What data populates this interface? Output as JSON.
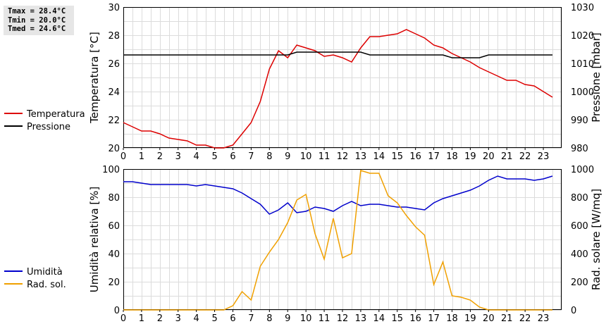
{
  "stats": {
    "tmax": "Tmax = 28.4°C",
    "tmin": "Tmin = 20.0°C",
    "tmed": "Tmed = 24.6°C"
  },
  "chart_data": [
    {
      "type": "line",
      "xlabel": "",
      "x_ticks": [
        "0",
        "1",
        "2",
        "3",
        "4",
        "5",
        "6",
        "7",
        "8",
        "9",
        "10",
        "11",
        "12",
        "13",
        "14",
        "15",
        "16",
        "17",
        "18",
        "19",
        "20",
        "21",
        "22",
        "23"
      ],
      "xlim": [
        0,
        24
      ],
      "ylabel": "Temperatura [°C]",
      "ylim": [
        20,
        30
      ],
      "y_ticks": [
        "20",
        "22",
        "24",
        "26",
        "28",
        "30"
      ],
      "y2label": "Pressione [mbar]",
      "y2lim": [
        980,
        1030
      ],
      "y2_ticks": [
        "980",
        "990",
        "1000",
        "1010",
        "1020",
        "1030"
      ],
      "grid": true,
      "legend_position": "left",
      "series": [
        {
          "name": "Temperatura",
          "axis": "left",
          "color": "#dd0000",
          "x": [
            0,
            0.5,
            1,
            1.5,
            2,
            2.5,
            3,
            3.5,
            4,
            4.5,
            5,
            5.5,
            6,
            6.5,
            7,
            7.5,
            8,
            8.5,
            9,
            9.5,
            10,
            10.5,
            11,
            11.5,
            12,
            12.5,
            13,
            13.5,
            14,
            14.5,
            15,
            15.5,
            16,
            16.5,
            17,
            17.5,
            18,
            18.5,
            19,
            19.5,
            20,
            20.5,
            21,
            21.5,
            22,
            22.5,
            23,
            23.5
          ],
          "values": [
            21.8,
            21.5,
            21.2,
            21.2,
            21.0,
            20.7,
            20.6,
            20.5,
            20.2,
            20.2,
            20.0,
            20.0,
            20.2,
            21.0,
            21.8,
            23.3,
            25.6,
            26.9,
            26.4,
            27.3,
            27.1,
            26.9,
            26.5,
            26.6,
            26.4,
            26.1,
            27.1,
            27.9,
            27.9,
            28.0,
            28.1,
            28.4,
            28.1,
            27.8,
            27.3,
            27.1,
            26.7,
            26.4,
            26.1,
            25.7,
            25.4,
            25.1,
            24.8,
            24.8,
            24.5,
            24.4,
            24.0,
            23.6
          ]
        },
        {
          "name": "Pressione",
          "axis": "right",
          "color": "#000000",
          "x": [
            0,
            9,
            9.5,
            13,
            13.5,
            17.5,
            18,
            19.5,
            20,
            23.5
          ],
          "values": [
            1013,
            1013,
            1014,
            1014,
            1013,
            1013,
            1012,
            1012,
            1013,
            1013
          ]
        }
      ]
    },
    {
      "type": "line",
      "xlabel": "",
      "x_ticks": [
        "0",
        "1",
        "2",
        "3",
        "4",
        "5",
        "6",
        "7",
        "8",
        "9",
        "10",
        "11",
        "12",
        "13",
        "14",
        "15",
        "16",
        "17",
        "18",
        "19",
        "20",
        "21",
        "22",
        "23"
      ],
      "xlim": [
        0,
        24
      ],
      "ylabel": "Umidità relativa [%]",
      "ylim": [
        0,
        100
      ],
      "y_ticks": [
        "0",
        "20",
        "40",
        "60",
        "80",
        "100"
      ],
      "y2label": "Rad. solare [W/mq]",
      "y2lim": [
        0,
        1000
      ],
      "y2_ticks": [
        "0",
        "200",
        "400",
        "600",
        "800",
        "1000"
      ],
      "grid": true,
      "legend_position": "left",
      "series": [
        {
          "name": "Umidità",
          "axis": "left",
          "color": "#0000cc",
          "x": [
            0,
            0.5,
            1,
            1.5,
            2,
            2.5,
            3,
            3.5,
            4,
            4.5,
            5,
            5.5,
            6,
            6.5,
            7,
            7.5,
            8,
            8.5,
            9,
            9.5,
            10,
            10.5,
            11,
            11.5,
            12,
            12.5,
            13,
            13.5,
            14,
            14.5,
            15,
            15.5,
            16,
            16.5,
            17,
            17.5,
            18,
            18.5,
            19,
            19.5,
            20,
            20.5,
            21,
            21.5,
            22,
            22.5,
            23,
            23.5
          ],
          "values": [
            91,
            91,
            90,
            89,
            89,
            89,
            89,
            89,
            88,
            89,
            88,
            87,
            86,
            83,
            79,
            75,
            68,
            71,
            76,
            69,
            70,
            73,
            72,
            70,
            74,
            77,
            74,
            75,
            75,
            74,
            73,
            73,
            72,
            71,
            76,
            79,
            81,
            83,
            85,
            88,
            92,
            95,
            93,
            93,
            93,
            92,
            93,
            95
          ]
        },
        {
          "name": "Rad. sol.",
          "axis": "right",
          "color": "#f0a000",
          "x": [
            0,
            0.5,
            1,
            1.5,
            2,
            2.5,
            3,
            3.5,
            4,
            4.5,
            5,
            5.5,
            6,
            6.5,
            7,
            7.5,
            8,
            8.5,
            9,
            9.5,
            10,
            10.5,
            11,
            11.5,
            12,
            12.5,
            13,
            13.5,
            14,
            14.5,
            15,
            15.5,
            16,
            16.5,
            17,
            17.5,
            18,
            18.5,
            19,
            19.5,
            20,
            20.5,
            21,
            21.5,
            22,
            22.5,
            23,
            23.5
          ],
          "values": [
            0,
            0,
            0,
            0,
            0,
            0,
            0,
            0,
            0,
            0,
            0,
            0,
            30,
            130,
            70,
            310,
            410,
            500,
            620,
            780,
            820,
            540,
            360,
            650,
            370,
            400,
            990,
            970,
            970,
            810,
            760,
            670,
            590,
            530,
            180,
            340,
            100,
            90,
            70,
            20,
            0,
            0,
            0,
            0,
            0,
            0,
            0,
            0
          ]
        }
      ]
    }
  ]
}
